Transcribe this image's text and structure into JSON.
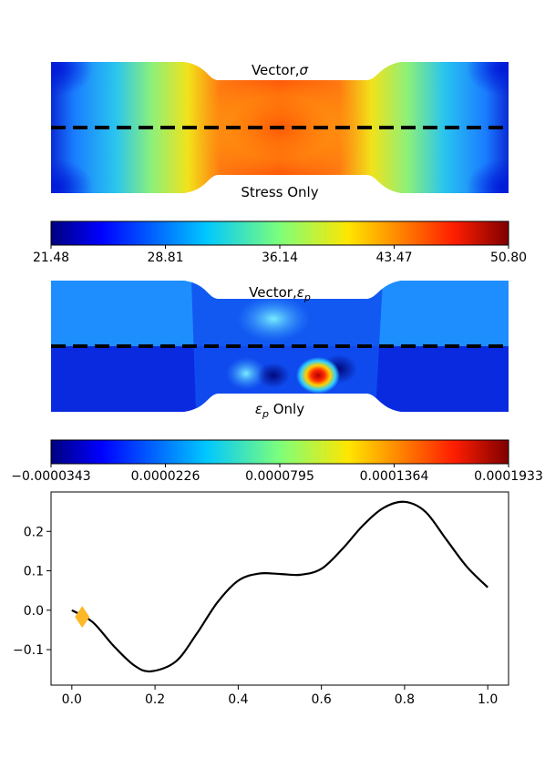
{
  "panels": {
    "stress": {
      "top_label": "Vector,",
      "top_label_symbol": "σ",
      "bottom_label": "Stress Only"
    },
    "strain": {
      "top_label": "Vector,",
      "top_label_symbol": "ε",
      "top_label_sub": "p",
      "bottom_label_symbol": "ε",
      "bottom_label_sub": "p",
      "bottom_label_rest": " Only"
    }
  },
  "colorbars": [
    {
      "ticks": [
        "21.48",
        "28.81",
        "36.14",
        "43.47",
        "50.80"
      ]
    },
    {
      "ticks": [
        "−0.0000343",
        "0.0000226",
        "0.0000795",
        "0.0001364",
        "0.0001933"
      ]
    }
  ],
  "colors": {
    "marker": "#fdb827",
    "line": "#000000",
    "dashed": "#000000"
  },
  "chart_data": {
    "type": "line",
    "title": "",
    "xlabel": "",
    "ylabel": "",
    "xlim": [
      -0.05,
      1.05
    ],
    "ylim": [
      -0.19,
      0.3
    ],
    "xticks": [
      0.0,
      0.2,
      0.4,
      0.6,
      0.8,
      1.0
    ],
    "xtick_labels": [
      "0.0",
      "0.2",
      "0.4",
      "0.6",
      "0.8",
      "1.0"
    ],
    "yticks": [
      -0.1,
      0.0,
      0.1,
      0.2
    ],
    "ytick_labels": [
      "−0.1",
      "0.0",
      "0.1",
      "0.2"
    ],
    "grid": false,
    "series": [
      {
        "x": [
          0.0,
          0.05,
          0.1,
          0.15,
          0.19,
          0.25,
          0.3,
          0.35,
          0.4,
          0.45,
          0.5,
          0.55,
          0.6,
          0.65,
          0.7,
          0.75,
          0.8,
          0.85,
          0.9,
          0.95,
          1.0
        ],
        "y": [
          0.0,
          -0.03,
          -0.09,
          -0.14,
          -0.155,
          -0.13,
          -0.06,
          0.02,
          0.075,
          0.093,
          0.092,
          0.09,
          0.105,
          0.155,
          0.215,
          0.26,
          0.275,
          0.25,
          0.18,
          0.11,
          0.058
        ]
      }
    ],
    "marker_point": {
      "x": 0.025,
      "y": -0.017,
      "shape": "diamond"
    }
  }
}
